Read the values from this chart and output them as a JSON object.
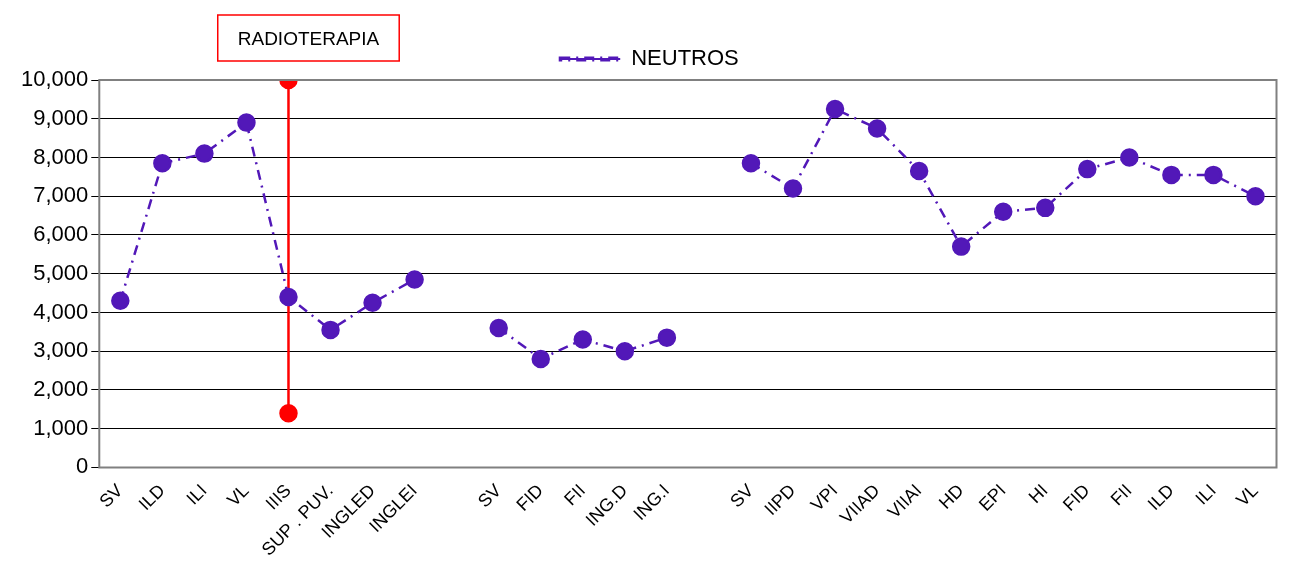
{
  "chart_data": {
    "type": "line",
    "categories": [
      "SV",
      "ILD",
      "ILI",
      "VL",
      "IIIS",
      "SUP . PUV.",
      "INGLED",
      "INGLEI",
      null,
      "SV",
      "FID",
      "FII",
      "ING.D",
      "ING.I",
      null,
      "SV",
      "IIPD",
      "VPI",
      "VIIAD",
      "VIIAI",
      "HD",
      "EPI",
      "HI",
      "FID",
      "FII",
      "ILD",
      "ILI",
      "VL"
    ],
    "series": [
      {
        "name": "NEUTROS",
        "color": "#5218b8",
        "values": [
          4300,
          7850,
          8100,
          8900,
          4400,
          3550,
          4250,
          4850,
          null,
          3600,
          2800,
          3300,
          3000,
          3350,
          null,
          7850,
          7200,
          9250,
          8750,
          7650,
          5700,
          6600,
          6700,
          7700,
          8000,
          7550,
          7550,
          7000
        ],
        "line_style": "dashed",
        "marker": "circle"
      },
      {
        "color": "#ff0000",
        "x": [
          "IIIS",
          "IIIS"
        ],
        "values": [
          10000,
          1400
        ],
        "line_style": "solid",
        "marker": "circle"
      }
    ],
    "ylim": [
      0,
      10000
    ],
    "yticks": [
      0,
      {
        "value": 1000,
        "label": "1,000"
      },
      {
        "value": 2000,
        "label": "2,000"
      },
      {
        "value": 3000,
        "label": "3,000"
      },
      {
        "value": 4000,
        "label": "4,000"
      },
      {
        "value": 5000,
        "label": "5,000"
      },
      {
        "value": 6000,
        "label": "6,000"
      },
      {
        "value": 7000,
        "label": "7,000"
      },
      {
        "value": 8000,
        "label": "8,000"
      },
      {
        "value": 9000,
        "label": "9,000"
      },
      {
        "value": 10000,
        "label": "10,000"
      }
    ],
    "grid": "y",
    "legend": "top",
    "annotations": [
      {
        "text": "RADIOTERAPIA",
        "x": "IIIS",
        "y": 10000
      }
    ]
  }
}
